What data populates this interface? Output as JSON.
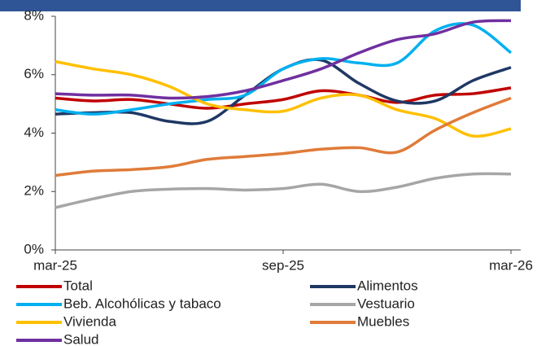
{
  "chart_data": {
    "type": "line",
    "categories": [
      "mar-25",
      null,
      null,
      null,
      null,
      null,
      "sep-25",
      null,
      null,
      null,
      null,
      null,
      "mar-26"
    ],
    "ylim": [
      0,
      8
    ],
    "yticks": [
      {
        "value": 0,
        "label": "0%"
      },
      {
        "value": 2,
        "label": "2%"
      },
      {
        "value": 4,
        "label": "4%"
      },
      {
        "value": 6,
        "label": "6%"
      },
      {
        "value": 8,
        "label": "8%"
      }
    ],
    "grid": false,
    "series": [
      {
        "name": "Total",
        "color": "#c00000",
        "values": [
          5.2,
          5.1,
          5.15,
          5.0,
          4.85,
          5.0,
          5.15,
          5.45,
          5.3,
          5.05,
          5.3,
          5.35,
          5.55
        ]
      },
      {
        "name": "Alimentos",
        "color": "#1f3864",
        "values": [
          4.65,
          4.7,
          4.7,
          4.4,
          4.4,
          5.3,
          6.2,
          6.5,
          5.7,
          5.1,
          5.1,
          5.8,
          6.25
        ]
      },
      {
        "name": "Beb. Alcohólicas y tabaco",
        "color": "#00b0f0",
        "values": [
          4.8,
          4.65,
          4.8,
          5.0,
          5.15,
          5.3,
          6.2,
          6.55,
          6.4,
          6.4,
          7.5,
          7.7,
          6.75
        ]
      },
      {
        "name": "Vestuario",
        "color": "#a6a6a6",
        "values": [
          1.45,
          1.75,
          2.0,
          2.08,
          2.1,
          2.05,
          2.1,
          2.25,
          2.0,
          2.15,
          2.45,
          2.6,
          2.6
        ]
      },
      {
        "name": "Vivienda",
        "color": "#ffc000",
        "values": [
          6.45,
          6.2,
          6.0,
          5.6,
          5.0,
          4.8,
          4.75,
          5.2,
          5.3,
          4.8,
          4.5,
          3.9,
          4.15
        ]
      },
      {
        "name": "Muebles",
        "color": "#e07b39",
        "values": [
          2.55,
          2.7,
          2.75,
          2.85,
          3.1,
          3.2,
          3.3,
          3.45,
          3.5,
          3.35,
          4.1,
          4.7,
          5.2
        ]
      },
      {
        "name": "Salud",
        "color": "#7030a0",
        "values": [
          5.35,
          5.3,
          5.3,
          5.2,
          5.25,
          5.45,
          5.8,
          6.2,
          6.75,
          7.2,
          7.4,
          7.8,
          7.85
        ]
      }
    ]
  }
}
